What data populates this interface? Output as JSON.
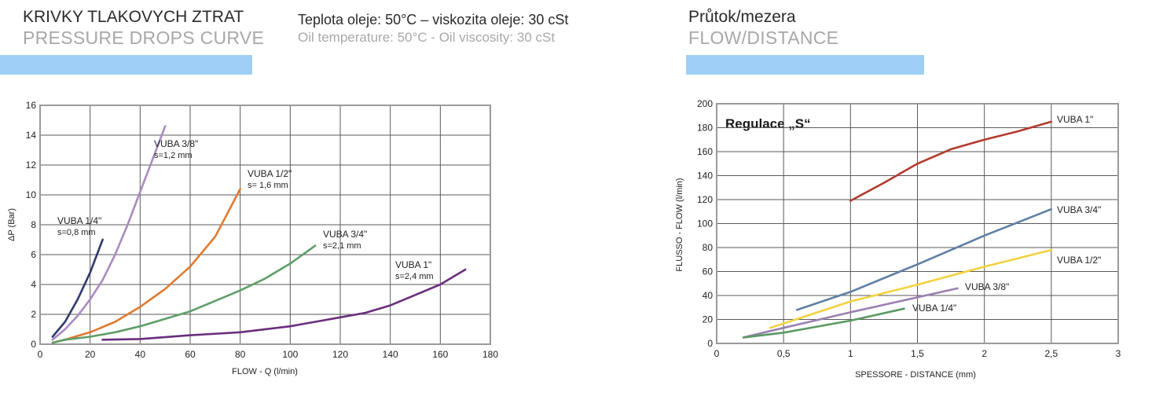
{
  "headers": {
    "left_title_cz": "KRIVKY TLAKOVYCH ZTRAT",
    "left_title_en": "PRESSURE DROPS CURVE",
    "conditions_cz": "Teplota oleje: 50°C – viskozita oleje: 30 cSt",
    "conditions_en": "Oil temperature: 50°C - Oil viscosity: 30 cSt",
    "right_title_cz": "Průtok/mezera",
    "right_title_en": "FLOW/DISTANCE"
  },
  "colors": {
    "accent_bar": "#9ed0f6",
    "grid": "#555555",
    "frame": "#999999"
  },
  "chart_data": [
    {
      "type": "line",
      "xlabel": "FLOW - Q (l/min)",
      "ylabel": "ΔP (Bar)",
      "xlim": [
        0,
        180
      ],
      "ylim": [
        0,
        16
      ],
      "xticks": [
        0,
        20,
        40,
        60,
        80,
        100,
        120,
        140,
        160,
        180
      ],
      "yticks": [
        0,
        2,
        4,
        6,
        8,
        10,
        12,
        14,
        16
      ],
      "grid": true,
      "series": [
        {
          "name": "VUBA 1/4\"",
          "label2": "s=0,8 mm",
          "color": "#2f3a6b",
          "x": [
            5,
            10,
            15,
            20,
            25
          ],
          "y": [
            0.5,
            1.5,
            3.0,
            4.8,
            7.0
          ]
        },
        {
          "name": "VUBA 3/8\"",
          "label2": "s=1,2 mm",
          "color": "#a98bc0",
          "x": [
            5,
            10,
            15,
            20,
            25,
            30,
            35,
            40,
            45,
            50
          ],
          "y": [
            0.3,
            1.0,
            1.9,
            3.0,
            4.3,
            6.0,
            8.0,
            10.2,
            12.4,
            14.6
          ]
        },
        {
          "name": "VUBA 1/2\"",
          "label2": "s= 1,6 mm",
          "color": "#e07a30",
          "x": [
            5,
            10,
            20,
            30,
            40,
            50,
            60,
            70,
            75,
            80
          ],
          "y": [
            0.1,
            0.3,
            0.8,
            1.5,
            2.5,
            3.7,
            5.2,
            7.2,
            8.8,
            10.4
          ]
        },
        {
          "name": "VUBA 3/4\"",
          "label2": "s=2,1 mm",
          "color": "#5e9e68",
          "x": [
            5,
            10,
            20,
            30,
            40,
            50,
            60,
            70,
            80,
            90,
            100,
            110
          ],
          "y": [
            0.1,
            0.3,
            0.5,
            0.8,
            1.2,
            1.7,
            2.2,
            2.9,
            3.6,
            4.4,
            5.4,
            6.6
          ]
        },
        {
          "name": "VUBA 1\"",
          "label2": "s=2,4 mm",
          "color": "#6a2e7e",
          "x": [
            25,
            40,
            60,
            80,
            100,
            110,
            120,
            130,
            140,
            150,
            160,
            170
          ],
          "y": [
            0.3,
            0.35,
            0.6,
            0.8,
            1.2,
            1.5,
            1.8,
            2.1,
            2.6,
            3.3,
            4.0,
            5.0
          ]
        }
      ]
    },
    {
      "type": "line",
      "annotation": "Regulace „S“",
      "xlabel": "SPESSORE - DISTANCE (mm)",
      "ylabel": "FLUSSO - FLOW (l/min)",
      "xlim": [
        0,
        3
      ],
      "ylim": [
        0,
        200
      ],
      "xticks": [
        0,
        0.5,
        1,
        1.5,
        2,
        2.5,
        3
      ],
      "xtick_labels": [
        "0",
        "0,5",
        "1",
        "1,5",
        "2",
        "2,5",
        "3"
      ],
      "yticks": [
        0,
        20,
        40,
        60,
        80,
        100,
        120,
        140,
        160,
        180,
        200
      ],
      "grid": true,
      "series": [
        {
          "name": "VUBA 1\"",
          "color": "#b33a2e",
          "x": [
            1.0,
            1.25,
            1.5,
            1.75,
            2.0,
            2.25,
            2.5
          ],
          "y": [
            119,
            134,
            150,
            162,
            170,
            177,
            185
          ]
        },
        {
          "name": "VUBA 3/4\"",
          "color": "#5f7fa5",
          "x": [
            0.6,
            1.0,
            1.5,
            2.0,
            2.5
          ],
          "y": [
            28,
            43,
            66,
            90,
            112
          ]
        },
        {
          "name": "VUBA 1/2\"",
          "color": "#f2d23e",
          "x": [
            0.4,
            1.0,
            1.5,
            2.0,
            2.5
          ],
          "y": [
            13,
            35,
            49,
            64,
            78
          ]
        },
        {
          "name": "VUBA 3/8\"",
          "color": "#9a80b0",
          "x": [
            0.2,
            0.5,
            1.0,
            1.4,
            1.8
          ],
          "y": [
            5,
            13,
            26,
            36,
            46
          ]
        },
        {
          "name": "VUBA 1/4\"",
          "color": "#5a9a62",
          "x": [
            0.2,
            0.5,
            1.0,
            1.4
          ],
          "y": [
            5,
            9,
            19,
            29
          ]
        }
      ]
    }
  ]
}
